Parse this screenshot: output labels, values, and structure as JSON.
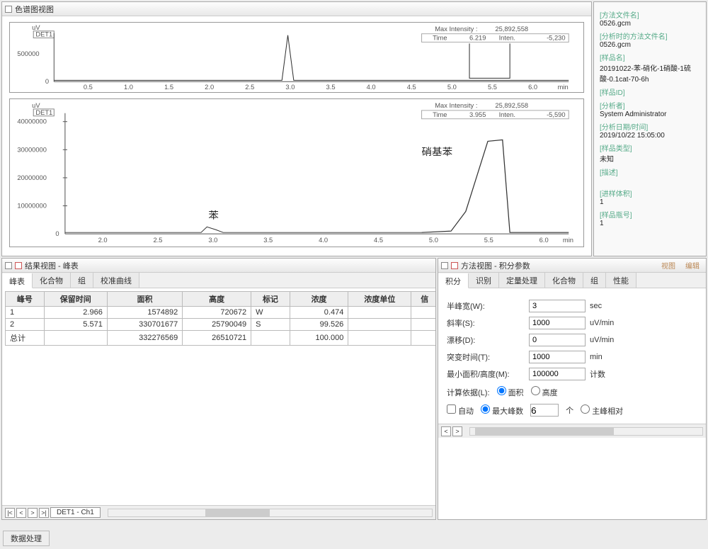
{
  "chrom_view": {
    "title": "色谱图视图",
    "chart1": {
      "ylabel": "uV",
      "det_label": "DET1",
      "max_intensity_label": "Max Intensity :",
      "max_intensity": "25,892,558",
      "time_label": "Time",
      "time_val": "6.219",
      "inten_label": "Inten.",
      "inten_val": "-5,230",
      "y_ticks": [
        "0",
        "500000"
      ],
      "x_ticks": [
        "0.5",
        "1.0",
        "1.5",
        "2.0",
        "2.5",
        "3.0",
        "3.5",
        "4.0",
        "4.5",
        "5.0",
        "5.5",
        "6.0"
      ],
      "x_unit": "min",
      "peak_x": 3.0,
      "xlim": [
        0.3,
        6.4
      ]
    },
    "chart2": {
      "ylabel": "uV",
      "det_label": "DET1",
      "max_intensity_label": "Max Intensity :",
      "max_intensity": "25,892,558",
      "time_label": "Time",
      "time_val": "3.955",
      "inten_label": "Inten.",
      "inten_val": "-5,590",
      "y_ticks": [
        "0",
        "10000000",
        "20000000",
        "30000000",
        "40000000"
      ],
      "x_ticks": [
        "2.0",
        "2.5",
        "3.0",
        "3.5",
        "4.0",
        "4.5",
        "5.0",
        "5.5",
        "6.0"
      ],
      "x_unit": "min",
      "label_benzene": "苯",
      "label_nitrobenzene": "硝基苯",
      "xlim": [
        1.7,
        6.4
      ]
    }
  },
  "meta": {
    "method_file_lbl": "[方法文件名]",
    "method_file": "0526.gcm",
    "analysis_method_lbl": "[分析时的方法文件名]",
    "analysis_method": "0526.gcm",
    "sample_name_lbl": "[样品名]",
    "sample_name": "20191022-苯-硝化-1硝酸-1硫酸-0.1cat-70-6h",
    "sample_id_lbl": "[样品ID]",
    "sample_id": "",
    "analyst_lbl": "[分析者]",
    "analyst": "System Administrator",
    "date_lbl": "[分析日期/时间]",
    "date": "2019/10/22 15:05:00",
    "sample_type_lbl": "[样品类型]",
    "sample_type": "未知",
    "desc_lbl": "[描述]",
    "inj_vol_lbl": "[进样体积]",
    "inj_vol": "1",
    "vial_lbl": "[样品瓶号]",
    "vial": "1"
  },
  "result_view": {
    "title": "结果视图 - 峰表",
    "tabs": [
      "峰表",
      "化合物",
      "组",
      "校准曲线"
    ],
    "columns": [
      "峰号",
      "保留时间",
      "面积",
      "高度",
      "标记",
      "浓度",
      "浓度单位",
      "信"
    ],
    "rows": [
      [
        "1",
        "2.966",
        "1574892",
        "720672",
        "W",
        "0.474",
        "",
        ""
      ],
      [
        "2",
        "5.571",
        "330701677",
        "25790049",
        "S",
        "99.526",
        "",
        ""
      ],
      [
        "总计",
        "",
        "332276569",
        "26510721",
        "",
        "100.000",
        "",
        ""
      ]
    ],
    "sheet": "DET1 - Ch1"
  },
  "method_view": {
    "title": "方法视图 - 积分参数",
    "view_btn": "视图",
    "edit_btn": "编辑",
    "tabs": [
      "积分",
      "识别",
      "定量处理",
      "化合物",
      "组",
      "性能"
    ],
    "params": {
      "half_width_lbl": "半峰宽(W):",
      "half_width": "3",
      "half_width_unit": "sec",
      "slope_lbl": "斜率(S):",
      "slope": "1000",
      "slope_unit": "uV/min",
      "drift_lbl": "漂移(D):",
      "drift": "0",
      "drift_unit": "uV/min",
      "dbl_time_lbl": "突变时间(T):",
      "dbl_time": "1000",
      "dbl_time_unit": "min",
      "min_area_lbl": "最小面积/高度(M):",
      "min_area": "100000",
      "min_area_unit": "计数",
      "basis_lbl": "计算依据(L):",
      "basis_area": "面积",
      "basis_height": "高度",
      "auto_lbl": "自动",
      "max_peaks_lbl": "最大峰数",
      "max_peaks": "6",
      "count_unit": "个",
      "main_peak_lbl": "主峰相对"
    }
  },
  "footer": {
    "data_proc": "数据处理"
  }
}
